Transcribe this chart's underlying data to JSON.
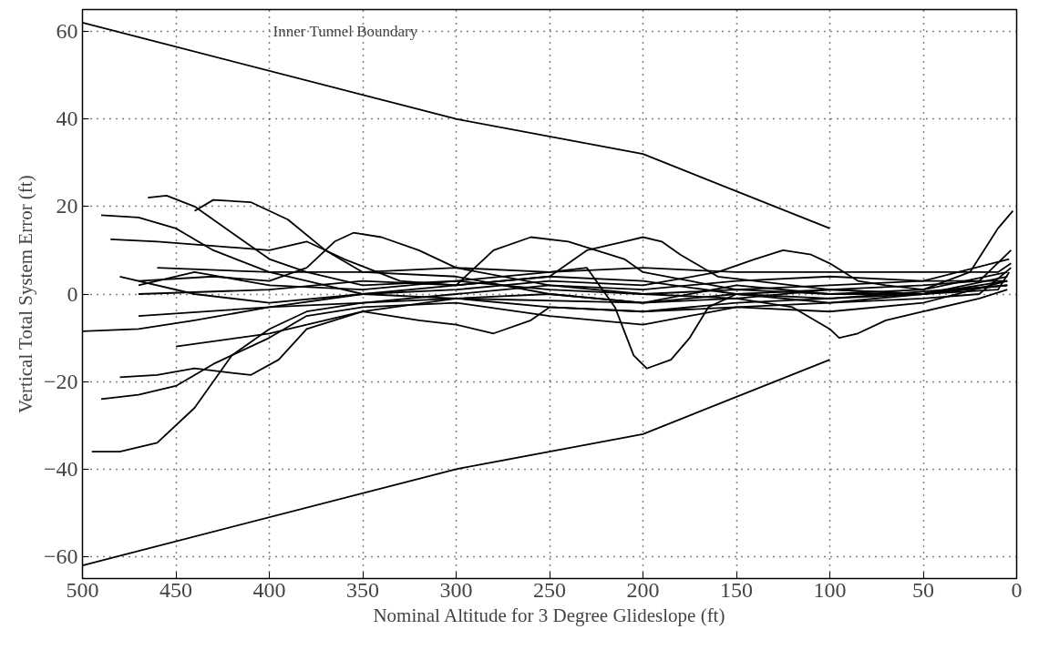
{
  "chart_data": {
    "type": "line",
    "xlabel": "Nominal Altitude for 3 Degree Glideslope (ft)",
    "ylabel": "Vertical Total System Error (ft)",
    "xlim": [
      500,
      0
    ],
    "ylim": [
      -65,
      65
    ],
    "xticks": [
      500,
      450,
      400,
      350,
      300,
      250,
      200,
      150,
      100,
      50,
      0
    ],
    "yticks": [
      -60,
      -40,
      -20,
      0,
      20,
      40,
      60
    ],
    "grid": true,
    "marker": "none",
    "line_style": "solid",
    "annotations": [
      "Inner Tunnel Boundary"
    ],
    "series": [
      {
        "color": "#000000",
        "x": [
          500,
          300,
          200,
          100
        ],
        "values": [
          62,
          40,
          32,
          15
        ]
      },
      {
        "color": "#000000",
        "x": [
          500,
          300,
          200,
          100
        ],
        "values": [
          -62,
          -40,
          -32,
          -15
        ]
      },
      {
        "color": "#000000",
        "x": [
          495,
          480,
          460,
          440,
          420,
          400,
          380,
          350,
          300,
          250,
          200,
          150,
          100,
          50,
          10,
          4
        ],
        "values": [
          -36,
          -36,
          -34,
          -26,
          -14,
          -8,
          -4,
          -2,
          0,
          2,
          0,
          1,
          0,
          0,
          1,
          5
        ]
      },
      {
        "color": "#000000",
        "x": [
          500,
          470,
          440,
          400,
          350,
          300,
          250,
          200,
          150,
          100,
          50,
          20,
          3
        ],
        "values": [
          -8.5,
          -8,
          -6,
          -3,
          0,
          2,
          4,
          3,
          0,
          -2,
          -1,
          0,
          6
        ]
      },
      {
        "color": "#000000",
        "x": [
          465,
          455,
          440,
          420,
          400,
          380,
          350,
          300,
          250,
          200,
          150,
          100,
          50,
          20,
          3
        ],
        "values": [
          22,
          22.5,
          20,
          14,
          8,
          5,
          2,
          3,
          1,
          0,
          -1,
          1,
          2,
          3,
          10
        ]
      },
      {
        "color": "#000000",
        "x": [
          440,
          430,
          410,
          390,
          370,
          350,
          300,
          250,
          200,
          150,
          100,
          50,
          25,
          10,
          2
        ],
        "values": [
          19,
          21.5,
          21,
          17,
          10,
          5,
          4,
          0,
          -2,
          2,
          0,
          1,
          5,
          15,
          19
        ]
      },
      {
        "color": "#000000",
        "x": [
          490,
          470,
          450,
          430,
          400,
          370,
          350,
          300,
          250,
          200,
          150,
          100,
          50,
          5
        ],
        "values": [
          18,
          17.5,
          15,
          10,
          5,
          2,
          0,
          -1,
          -3,
          -4,
          -3,
          -4,
          -2,
          3
        ]
      },
      {
        "color": "#000000",
        "x": [
          485,
          460,
          430,
          400,
          380,
          360,
          330,
          300,
          280,
          260,
          240,
          210,
          200,
          150,
          100,
          50,
          4
        ],
        "values": [
          12.5,
          12,
          11,
          10,
          12,
          8,
          3,
          2,
          10,
          13,
          12,
          8,
          5,
          1,
          2,
          3,
          8
        ]
      },
      {
        "color": "#000000",
        "x": [
          490,
          470,
          450,
          430,
          400,
          380,
          350,
          300,
          250,
          200,
          150,
          100,
          50,
          5
        ],
        "values": [
          -24,
          -23,
          -21,
          -16,
          -10,
          -5,
          -3,
          -2,
          -5,
          -7,
          -3,
          -2,
          0,
          4
        ]
      },
      {
        "color": "#000000",
        "x": [
          480,
          460,
          440,
          420,
          410,
          395,
          380,
          350,
          300,
          250,
          200,
          150,
          100,
          50,
          5
        ],
        "values": [
          -19,
          -18.5,
          -17,
          -18,
          -18.5,
          -15,
          -8,
          -4,
          -1,
          0,
          -2,
          0,
          1,
          0,
          2
        ]
      },
      {
        "color": "#000000",
        "x": [
          470,
          440,
          400,
          350,
          300,
          250,
          230,
          215,
          205,
          198,
          185,
          175,
          165,
          150,
          100,
          50,
          5
        ],
        "values": [
          2,
          5,
          2,
          1,
          3,
          5,
          6,
          -3,
          -14,
          -17,
          -15,
          -10,
          -3,
          0,
          -1,
          0,
          3
        ]
      },
      {
        "color": "#000000",
        "x": [
          480,
          440,
          400,
          350,
          300,
          250,
          200,
          160,
          140,
          125,
          110,
          100,
          85,
          70,
          50,
          5
        ],
        "values": [
          4,
          0,
          -2,
          0,
          1,
          3,
          2,
          5,
          8,
          10,
          9,
          7,
          3,
          2,
          1,
          5
        ]
      },
      {
        "color": "#000000",
        "x": [
          470,
          400,
          350,
          300,
          250,
          230,
          210,
          200,
          190,
          180,
          160,
          100,
          50,
          5
        ],
        "values": [
          0,
          1,
          3,
          2,
          4,
          10,
          12,
          13,
          12,
          9,
          4,
          1,
          0,
          2
        ]
      },
      {
        "color": "#000000",
        "x": [
          470,
          400,
          300,
          200,
          150,
          120,
          100,
          95,
          85,
          70,
          50,
          20,
          5
        ],
        "values": [
          -5,
          -3,
          -1,
          -2,
          -1,
          -3,
          -8,
          -10,
          -9,
          -6,
          -4,
          -1,
          1
        ]
      },
      {
        "color": "#000000",
        "x": [
          450,
          400,
          350,
          320,
          300,
          280,
          260,
          250,
          200,
          150,
          100,
          5
        ],
        "values": [
          -12,
          -9,
          -4,
          -6,
          -7,
          -9,
          -6,
          -3,
          -4,
          -2,
          -1,
          2
        ]
      },
      {
        "color": "#000000",
        "x": [
          470,
          430,
          400,
          380,
          365,
          355,
          340,
          320,
          300,
          250,
          200,
          150,
          100,
          50,
          5
        ],
        "values": [
          3,
          4,
          3,
          6,
          12,
          14,
          13,
          10,
          6,
          2,
          1,
          3,
          4,
          3,
          3
        ]
      },
      {
        "color": "#000000",
        "x": [
          460,
          400,
          350,
          300,
          250,
          200,
          150,
          100,
          50,
          25,
          10,
          3
        ],
        "values": [
          6,
          5,
          5,
          6,
          5,
          6,
          5,
          5,
          5,
          5,
          5,
          7
        ]
      }
    ]
  }
}
